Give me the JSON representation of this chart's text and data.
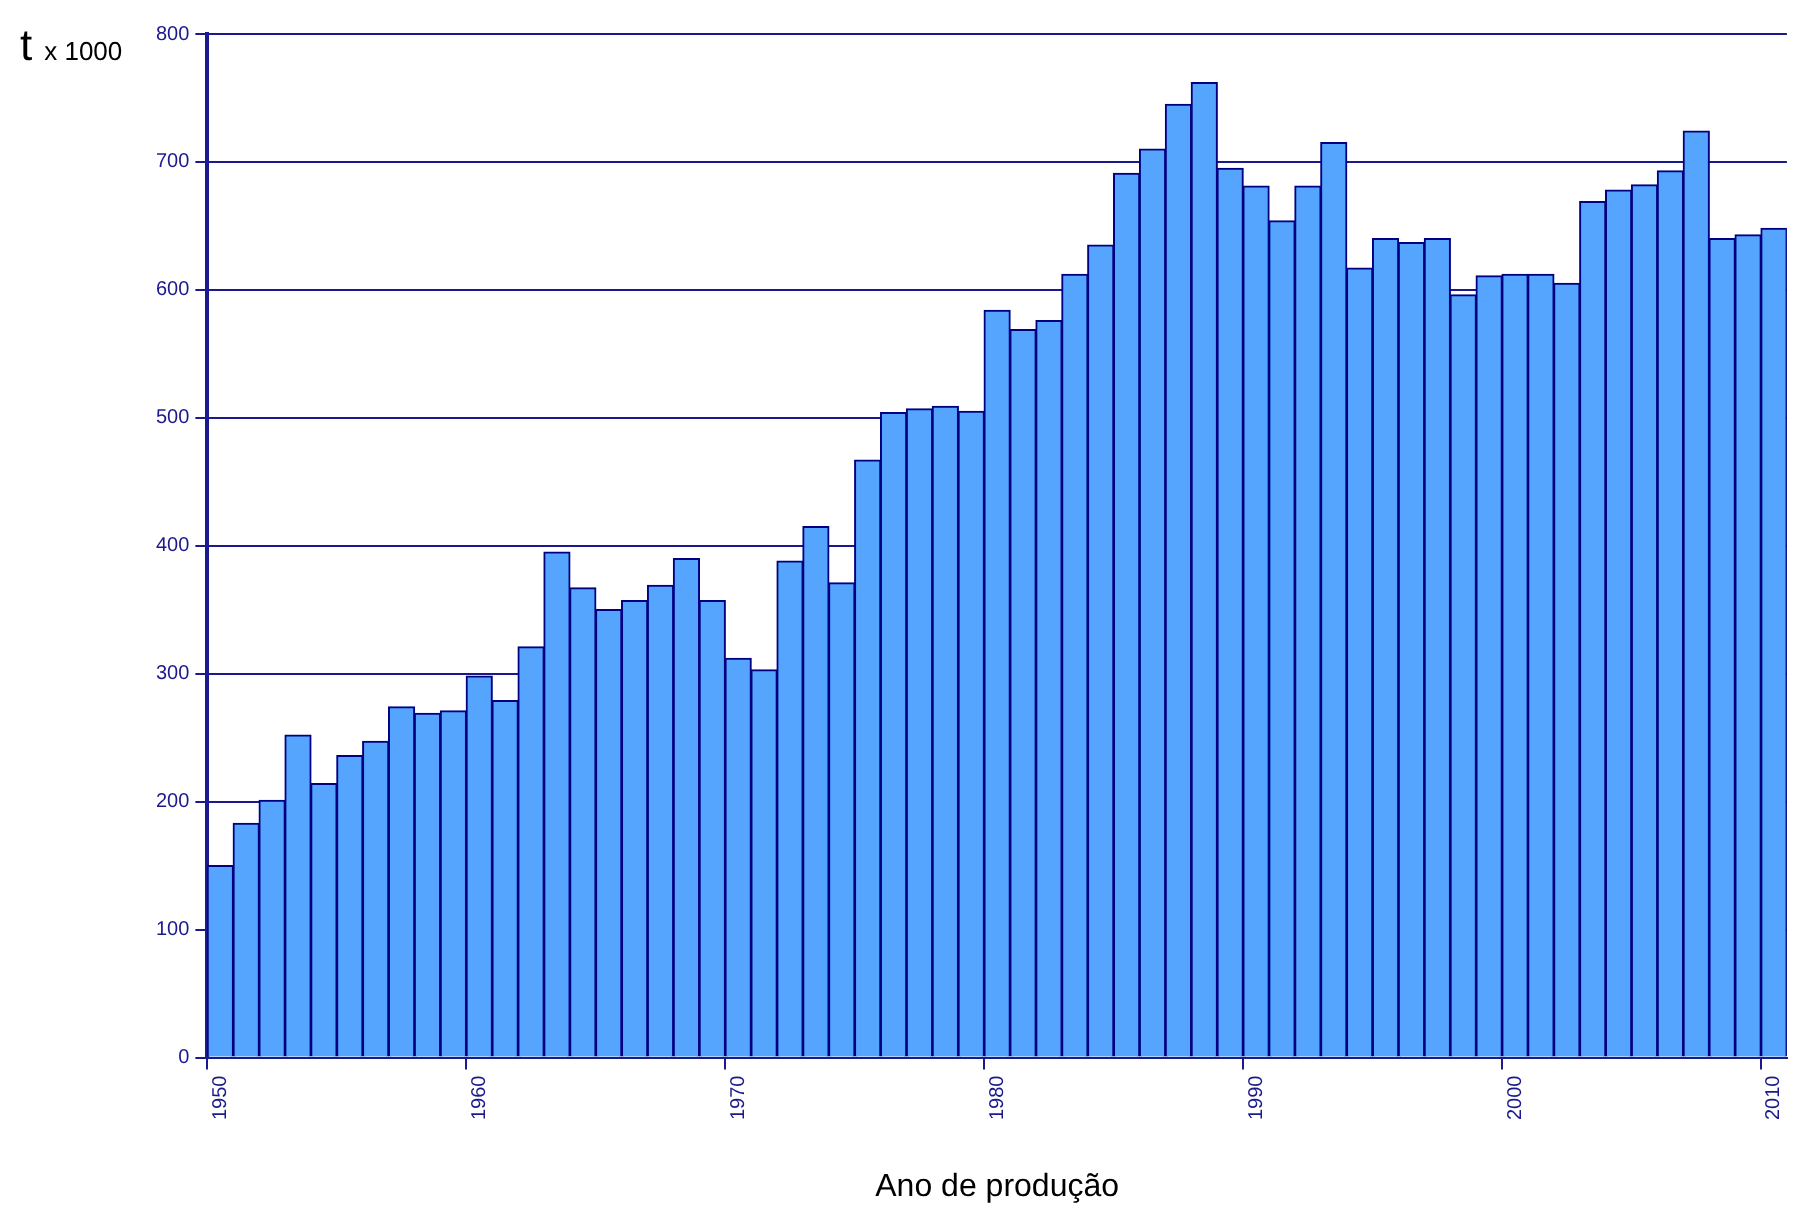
{
  "chart_data": {
    "type": "bar",
    "ylabel": "t x 1000",
    "xlabel": "Ano de produção",
    "categories": [
      "1950",
      null,
      null,
      null,
      null,
      null,
      null,
      null,
      null,
      null,
      "1960",
      null,
      null,
      null,
      null,
      null,
      null,
      null,
      null,
      null,
      "1970",
      null,
      null,
      null,
      null,
      null,
      null,
      null,
      null,
      null,
      "1980",
      null,
      null,
      null,
      null,
      null,
      null,
      null,
      null,
      null,
      "1990",
      null,
      null,
      null,
      null,
      null,
      null,
      null,
      null,
      null,
      "2000",
      null,
      null,
      null,
      null,
      null,
      null,
      null,
      null,
      null,
      "2010"
    ],
    "values": [
      150,
      183,
      201,
      252,
      214,
      236,
      247,
      274,
      269,
      271,
      298,
      279,
      321,
      395,
      367,
      350,
      357,
      369,
      390,
      357,
      312,
      303,
      388,
      415,
      371,
      467,
      504,
      507,
      509,
      505,
      584,
      569,
      576,
      612,
      635,
      691,
      710,
      745,
      762,
      695,
      681,
      654,
      681,
      715,
      617,
      640,
      637,
      640,
      596,
      611,
      612,
      612,
      605,
      669,
      678,
      682,
      693,
      724,
      640,
      643,
      648
    ],
    "color": "#55a5ff",
    "ylim": [
      0,
      800
    ],
    "yticks": [
      0,
      100,
      200,
      300,
      400,
      500,
      600,
      700,
      800
    ],
    "grid": "y",
    "legend": false
  }
}
